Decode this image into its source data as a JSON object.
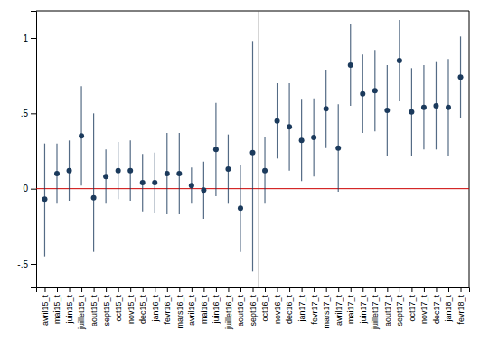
{
  "chart_data": {
    "type": "scatter",
    "categories": [
      "avril15_t",
      "mai15_t",
      "juin15_t",
      "juillet15_t",
      "aout15_t",
      "sept15_t",
      "oct15_t",
      "nov15_t",
      "dec15_t",
      "jan16_t",
      "fevr16_t",
      "mars16_t",
      "avril16_t",
      "mai16_t",
      "juin16_t",
      "juillet16_t",
      "aout16_t",
      "sept16_t",
      "oct16_t",
      "nov16_t",
      "dec16_t",
      "jan17_t",
      "fevr17_t",
      "mars17_t",
      "avril17_t",
      "mai17_t",
      "juin17_t",
      "juillet17_t",
      "aout17_t",
      "sept17_t",
      "oct17_t",
      "nov17_t",
      "dec17_t",
      "jan18_t",
      "fevr18_t"
    ],
    "values": [
      -0.07,
      0.1,
      0.12,
      0.35,
      -0.06,
      0.08,
      0.12,
      0.12,
      0.04,
      0.04,
      0.1,
      0.1,
      0.02,
      -0.01,
      0.26,
      0.13,
      -0.13,
      0.24,
      0.12,
      0.45,
      0.41,
      0.32,
      0.34,
      0.53,
      0.27,
      0.82,
      0.63,
      0.65,
      0.52,
      0.85,
      0.51,
      0.54,
      0.55,
      0.54,
      0.74
    ],
    "ci_low": [
      -0.45,
      -0.1,
      -0.08,
      0.02,
      -0.42,
      -0.1,
      -0.07,
      -0.08,
      -0.15,
      -0.16,
      -0.17,
      -0.17,
      -0.1,
      -0.2,
      -0.05,
      -0.1,
      -0.42,
      -0.55,
      -0.1,
      0.2,
      0.12,
      0.05,
      0.08,
      0.27,
      -0.02,
      0.55,
      0.37,
      0.38,
      0.22,
      0.58,
      0.22,
      0.26,
      0.26,
      0.22,
      0.47
    ],
    "ci_high": [
      0.3,
      0.3,
      0.32,
      0.68,
      0.5,
      0.26,
      0.31,
      0.32,
      0.23,
      0.24,
      0.37,
      0.37,
      0.14,
      0.18,
      0.57,
      0.36,
      0.16,
      0.98,
      0.34,
      0.7,
      0.7,
      0.59,
      0.6,
      0.79,
      0.56,
      1.09,
      0.89,
      0.92,
      0.82,
      1.12,
      0.8,
      0.82,
      0.84,
      0.86,
      1.01
    ],
    "color": "#1b3a5c",
    "hline": {
      "value": 0,
      "color": "#cc0000"
    },
    "vline_after": 17,
    "ylim": [
      -0.65,
      1.18
    ],
    "yticks": [
      {
        "value": -0.5,
        "label": "-.5"
      },
      0,
      {
        "value": 0.5,
        "label": ".5"
      },
      1
    ],
    "grid": false
  }
}
